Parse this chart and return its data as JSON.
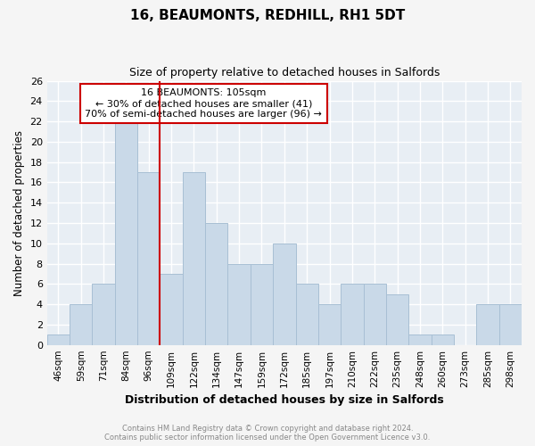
{
  "title": "16, BEAUMONTS, REDHILL, RH1 5DT",
  "subtitle": "Size of property relative to detached houses in Salfords",
  "xlabel": "Distribution of detached houses by size in Salfords",
  "ylabel": "Number of detached properties",
  "categories": [
    "46sqm",
    "59sqm",
    "71sqm",
    "84sqm",
    "96sqm",
    "109sqm",
    "122sqm",
    "134sqm",
    "147sqm",
    "159sqm",
    "172sqm",
    "185sqm",
    "197sqm",
    "210sqm",
    "222sqm",
    "235sqm",
    "248sqm",
    "260sqm",
    "273sqm",
    "285sqm",
    "298sqm"
  ],
  "values": [
    1,
    4,
    6,
    22,
    17,
    7,
    17,
    12,
    8,
    8,
    10,
    6,
    4,
    6,
    6,
    5,
    1,
    1,
    0,
    4,
    4
  ],
  "bar_color": "#c9d9e8",
  "bar_edge_color": "#a8bfd4",
  "vline_x_index": 5,
  "vline_color": "#cc0000",
  "ylim": [
    0,
    26
  ],
  "yticks": [
    0,
    2,
    4,
    6,
    8,
    10,
    12,
    14,
    16,
    18,
    20,
    22,
    24,
    26
  ],
  "annotation_line1": "16 BEAUMONTS: 105sqm",
  "annotation_line2": "← 30% of detached houses are smaller (41)",
  "annotation_line3": "70% of semi-detached houses are larger (96) →",
  "box_color": "#ffffff",
  "box_edge_color": "#cc0000",
  "footer_line1": "Contains HM Land Registry data © Crown copyright and database right 2024.",
  "footer_line2": "Contains public sector information licensed under the Open Government Licence v3.0.",
  "plot_bg_color": "#e8eef4",
  "grid_color": "#ffffff",
  "fig_bg_color": "#f5f5f5"
}
